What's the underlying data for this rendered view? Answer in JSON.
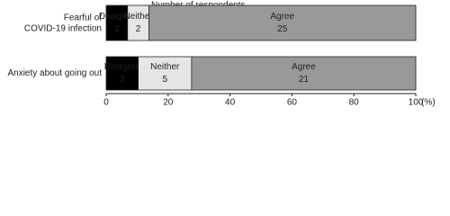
{
  "chart_data": {
    "type": "bar",
    "orientation": "horizontal",
    "stacked": true,
    "normalize": "percent",
    "categories": [
      "Fearful of\nCOVID-19 infection",
      "Anxiety about going out"
    ],
    "series": [
      {
        "name": "Disagree",
        "color": "#000000",
        "values": [
          2,
          3
        ]
      },
      {
        "name": "Neither",
        "color": "#e6e6e6",
        "values": [
          2,
          5
        ]
      },
      {
        "name": "Agree",
        "color": "#999999",
        "values": [
          25,
          21
        ]
      }
    ],
    "xlim": [
      0,
      100
    ],
    "xticks": [
      0,
      20,
      40,
      60,
      80,
      100
    ],
    "xlabel": "(%)",
    "annotation": "Number of respondents"
  }
}
